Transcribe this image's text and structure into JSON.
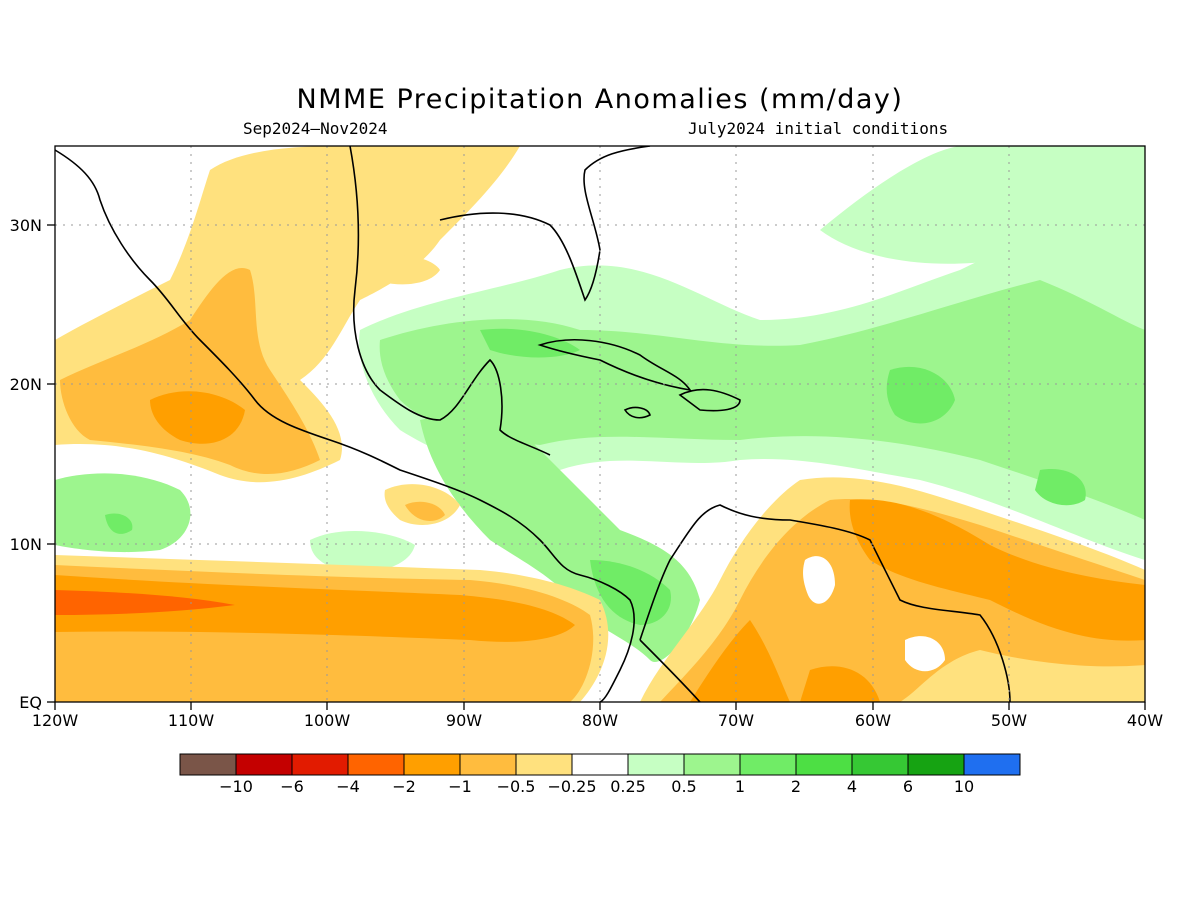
{
  "title": "NMME Precipitation Anomalies (mm/day)",
  "subtitle_left": "Sep2024–Nov2024",
  "subtitle_right": "July2024 initial conditions",
  "axes": {
    "lon_labels": [
      "120W",
      "110W",
      "100W",
      "90W",
      "80W",
      "70W",
      "60W",
      "50W",
      "40W"
    ],
    "lat_labels": [
      "EQ",
      "10N",
      "20N",
      "30N"
    ]
  },
  "colorbar": {
    "labels": [
      "−10",
      "−6",
      "−4",
      "−2",
      "−1",
      "−0.5",
      "−0.25",
      "0.25",
      "0.5",
      "1",
      "2",
      "4",
      "6",
      "10"
    ],
    "colors": [
      "#7a5548",
      "#c40000",
      "#e21b00",
      "#ff6400",
      "#ff9f00",
      "#ffbc3e",
      "#ffe17e",
      "#ffffff",
      "#c6ffc3",
      "#9df58e",
      "#70ec66",
      "#4ddf44",
      "#36c834",
      "#16a312",
      "#1f6ff0"
    ]
  },
  "colors": {
    "pos_light": "#c6ffc3",
    "pos_med": "#9df58e",
    "pos_strong": "#70ec66",
    "pos_max": "#4ddf44",
    "neg_light": "#ffe17e",
    "neg_med": "#ffbc3e",
    "neg_strong": "#ff9f00",
    "neg_max": "#ff6400"
  }
}
